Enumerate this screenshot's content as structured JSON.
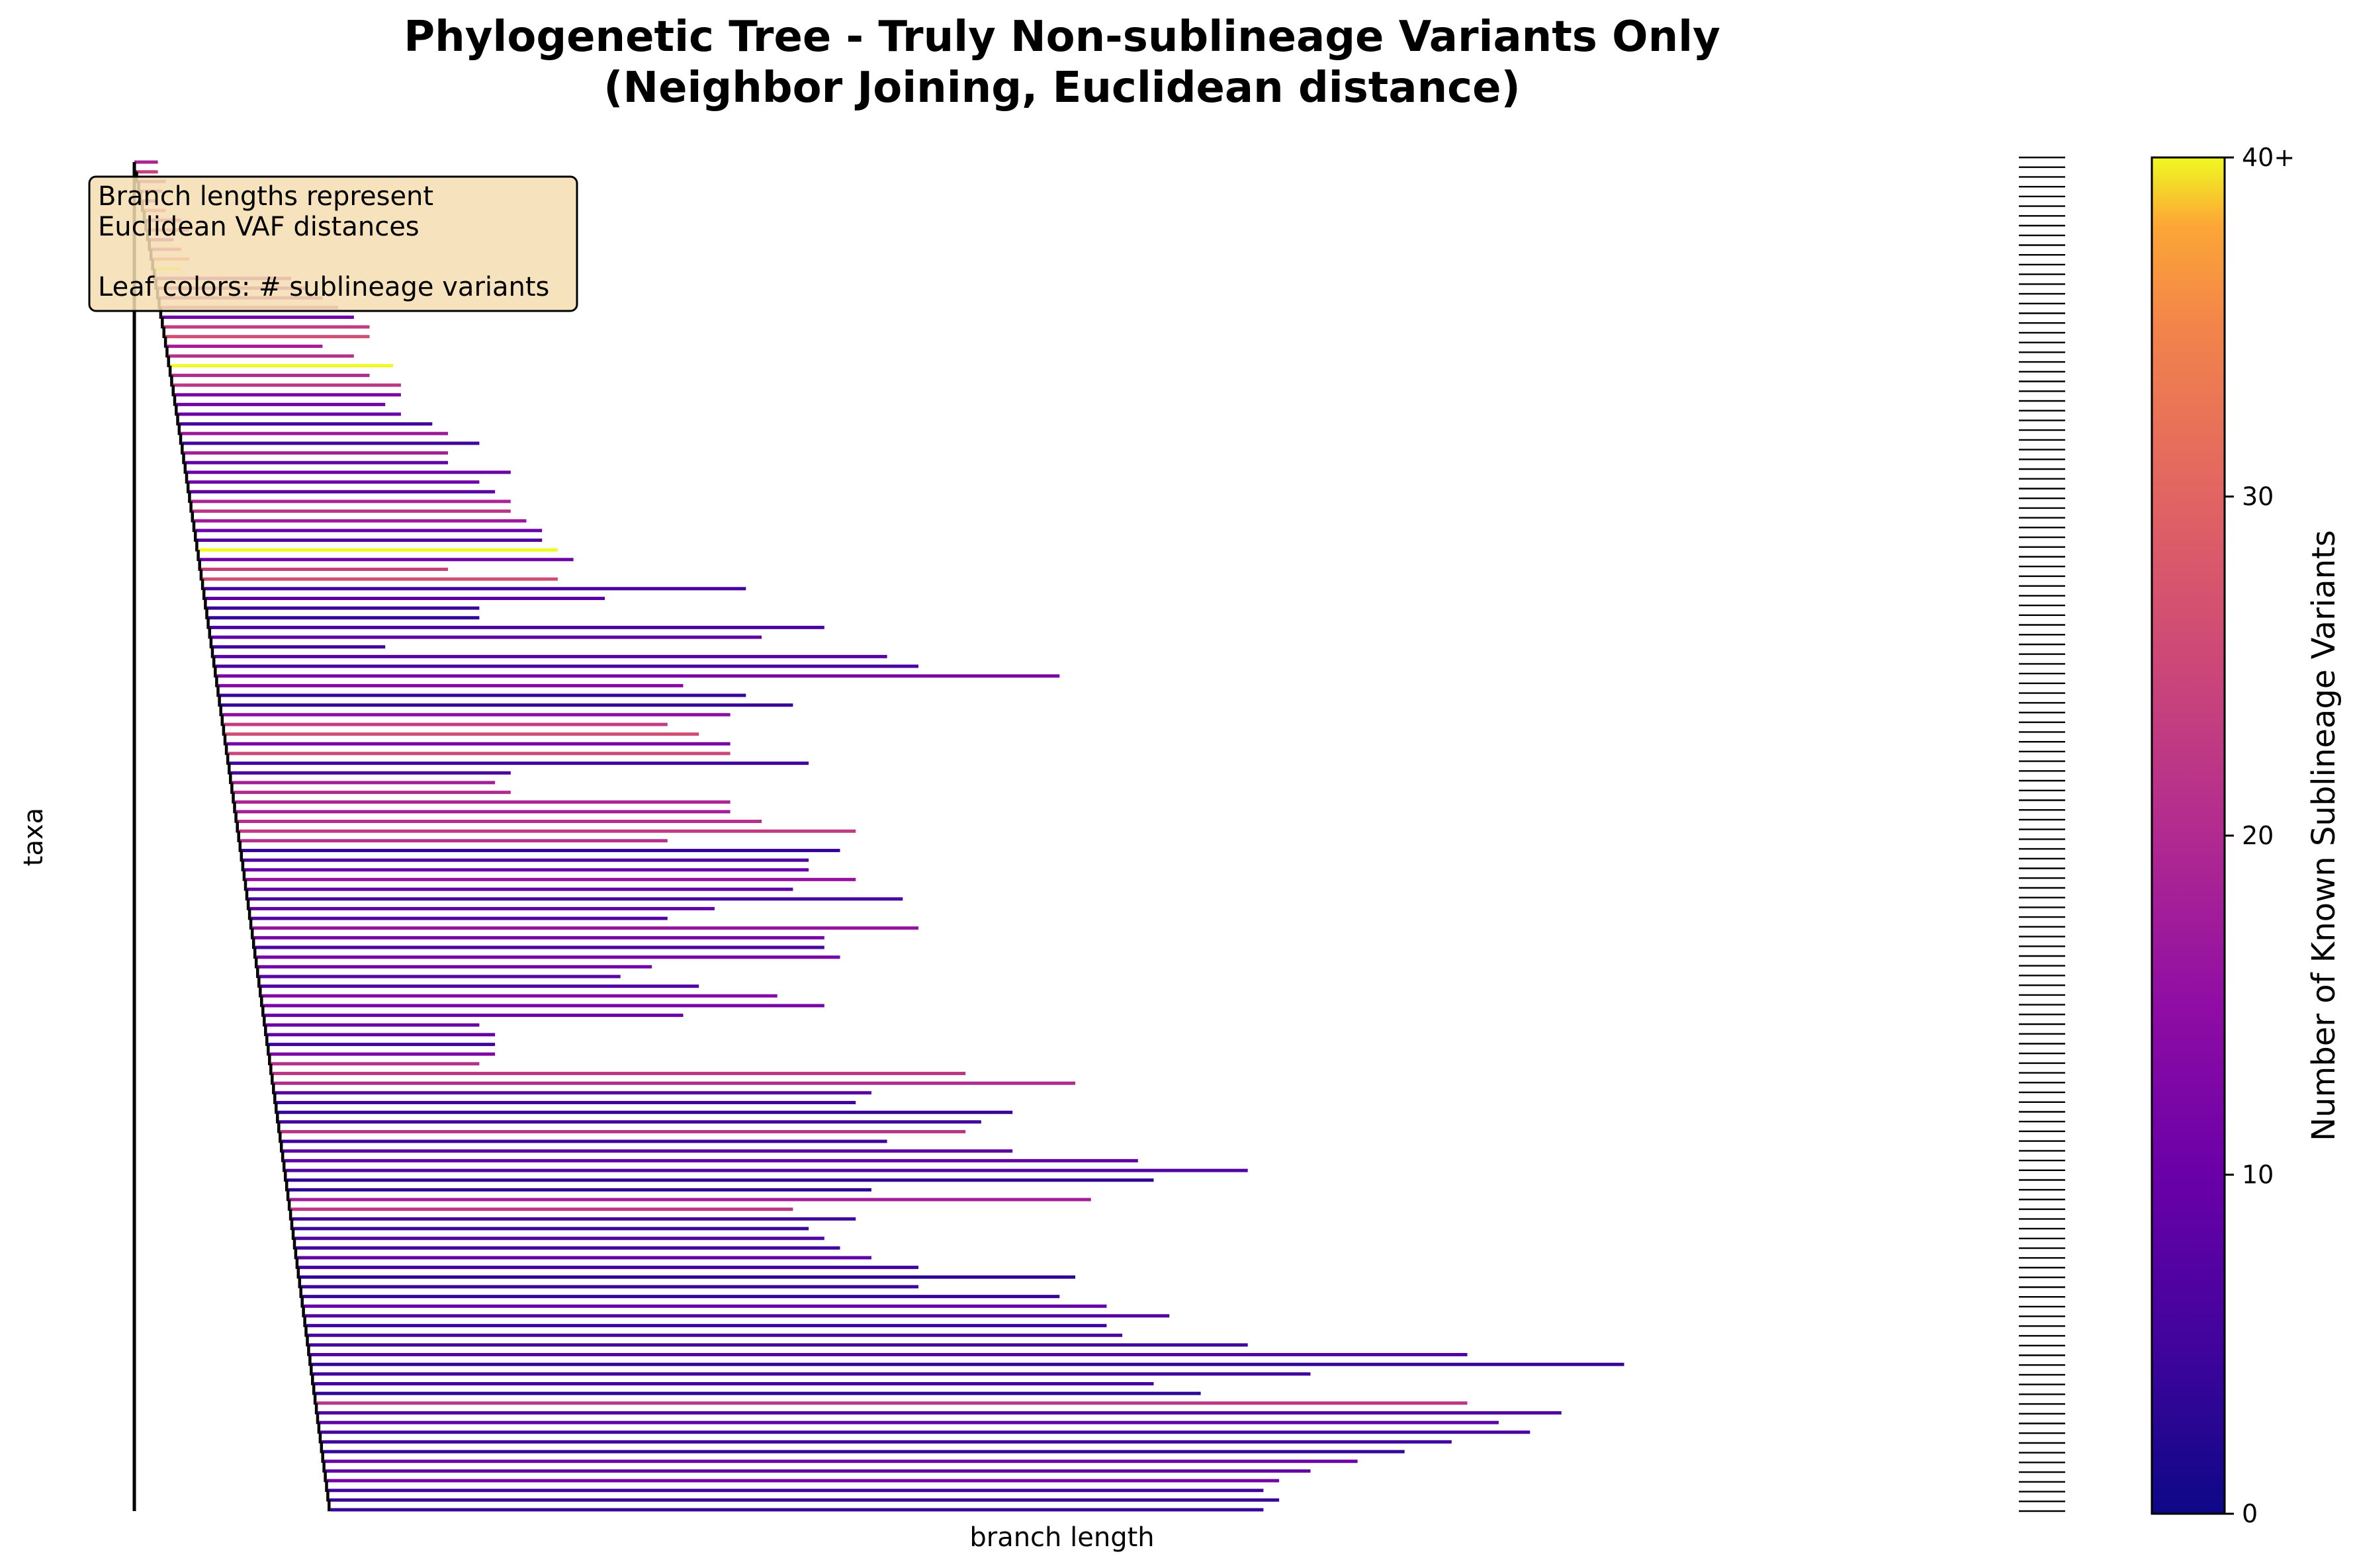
{
  "chart_data": {
    "type": "tree",
    "title_line1": "Phylogenetic Tree - Truly Non-sublineage Variants Only",
    "title_line2": "(Neighbor Joining, Euclidean distance)",
    "xlabel": "branch length",
    "ylabel": "taxa",
    "annotation": {
      "line1": "Branch lengths represent",
      "line2": "Euclidean VAF distances",
      "line3": "Leaf colors: # sublineage variants"
    },
    "colorbar": {
      "label": "Number of Known Sublineage Variants",
      "colormap": "plasma",
      "ticks": [
        "0",
        "10",
        "20",
        "30",
        "40+"
      ],
      "range": [
        0,
        40
      ]
    },
    "leaf_values": [
      19,
      24,
      22,
      21,
      20,
      26,
      19,
      24,
      17,
      22,
      31,
      40,
      17,
      19,
      20,
      23,
      11,
      23,
      26,
      18,
      21,
      40,
      20,
      22,
      12,
      11,
      10,
      5,
      17,
      5,
      18,
      9,
      10,
      11,
      8,
      19,
      22,
      17,
      10,
      7,
      40,
      11,
      24,
      26,
      6,
      8,
      4,
      4,
      6,
      9,
      5,
      8,
      6,
      12,
      14,
      4,
      4,
      15,
      23,
      26,
      12,
      25,
      5,
      6,
      18,
      20,
      19,
      18,
      21,
      23,
      21,
      4,
      7,
      10,
      16,
      9,
      6,
      9,
      7,
      16,
      12,
      6,
      12,
      11,
      8,
      7,
      14,
      12,
      10,
      10,
      9,
      5,
      13,
      21,
      22,
      20,
      8,
      5,
      4,
      5,
      22,
      5,
      8,
      9,
      7,
      3,
      3,
      18,
      22,
      5,
      4,
      7,
      5,
      9,
      5,
      3,
      5,
      4,
      9,
      7,
      5,
      6,
      5,
      7,
      4,
      5,
      6,
      3,
      22,
      7,
      8,
      6,
      5,
      4,
      10,
      9,
      11,
      5,
      4,
      4
    ],
    "leaf_extents": [
      0.015,
      0.015,
      0.02,
      0.018,
      0.015,
      0.02,
      0.03,
      0.035,
      0.025,
      0.03,
      0.035,
      0.03,
      0.1,
      0.11,
      0.12,
      0.13,
      0.14,
      0.15,
      0.15,
      0.12,
      0.14,
      0.165,
      0.15,
      0.17,
      0.17,
      0.16,
      0.17,
      0.19,
      0.2,
      0.22,
      0.2,
      0.2,
      0.24,
      0.22,
      0.23,
      0.24,
      0.24,
      0.25,
      0.26,
      0.26,
      0.27,
      0.28,
      0.2,
      0.27,
      0.39,
      0.3,
      0.22,
      0.22,
      0.44,
      0.4,
      0.16,
      0.48,
      0.5,
      0.59,
      0.35,
      0.39,
      0.42,
      0.38,
      0.34,
      0.36,
      0.38,
      0.38,
      0.43,
      0.24,
      0.23,
      0.24,
      0.38,
      0.38,
      0.4,
      0.46,
      0.34,
      0.45,
      0.43,
      0.43,
      0.46,
      0.42,
      0.49,
      0.37,
      0.34,
      0.5,
      0.44,
      0.44,
      0.45,
      0.33,
      0.31,
      0.36,
      0.41,
      0.44,
      0.35,
      0.22,
      0.23,
      0.23,
      0.23,
      0.22,
      0.53,
      0.6,
      0.47,
      0.46,
      0.56,
      0.54,
      0.53,
      0.48,
      0.56,
      0.64,
      0.71,
      0.65,
      0.47,
      0.61,
      0.42,
      0.46,
      0.43,
      0.44,
      0.45,
      0.47,
      0.5,
      0.6,
      0.5,
      0.59,
      0.62,
      0.66,
      0.62,
      0.63,
      0.71,
      0.85,
      0.95,
      0.75,
      0.65,
      0.68,
      0.85,
      0.91,
      0.87,
      0.89,
      0.84,
      0.81,
      0.78,
      0.75,
      0.73,
      0.72,
      0.73,
      0.72
    ]
  }
}
